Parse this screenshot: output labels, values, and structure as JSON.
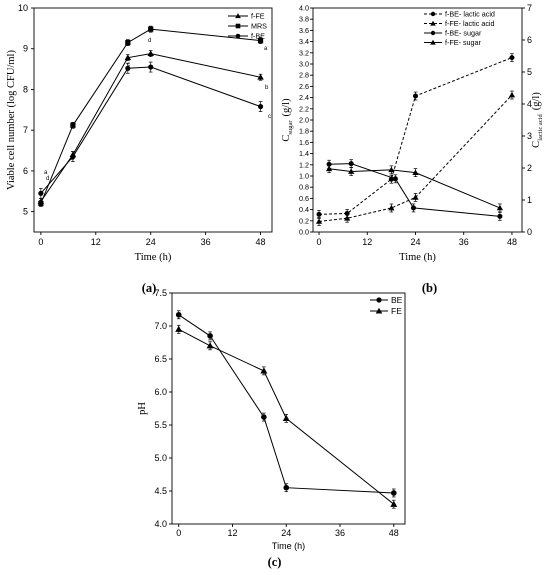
{
  "colors": {
    "ink": "#000000",
    "background": "#ffffff"
  },
  "panel_labels": [
    "(a)",
    "(b)",
    "(c)"
  ],
  "chart_data": [
    {
      "type": "line",
      "panel": "(a)",
      "xlabel": "Time (h)",
      "ylabel": "Viable cell number (log CFU/ml)",
      "xlim": [
        -1.5,
        50.5
      ],
      "ylim": [
        4.5,
        10
      ],
      "xticks": [
        "0",
        "12",
        "24",
        "36",
        "48"
      ],
      "yticks": [
        "5",
        "6",
        "7",
        "8",
        "9",
        "10"
      ],
      "legend_position": "top-right",
      "x": [
        0,
        7,
        19,
        24,
        48
      ],
      "series": [
        {
          "name": "f-FE",
          "marker": "triangle",
          "values": [
            5.25,
            6.4,
            8.78,
            8.88,
            8.3
          ]
        },
        {
          "name": "MRS",
          "marker": "square",
          "values": [
            5.2,
            7.12,
            9.15,
            9.48,
            9.2
          ]
        },
        {
          "name": "f-BE",
          "marker": "circle",
          "values": [
            5.45,
            6.35,
            8.52,
            8.55,
            7.58
          ]
        }
      ],
      "significance_letters": [
        "a",
        "b",
        "c",
        "d",
        "a",
        "b",
        "c",
        "d"
      ]
    },
    {
      "type": "line",
      "panel": "(b)",
      "xlabel": "Time (h)",
      "ylabel_left": "C",
      "ylabel_left_subscript": "sugar",
      "ylabel_left_unit": "(g/l)",
      "ylabel_right": "C",
      "ylabel_right_subscript": "lactic acid",
      "ylabel_right_unit": "(g/l)",
      "xlim": [
        -1.5,
        50.5
      ],
      "ylim_left": [
        0,
        4.0
      ],
      "ylim_right": [
        0,
        7
      ],
      "xticks": [
        "0",
        "12",
        "24",
        "36",
        "48"
      ],
      "yticks_left": [
        "0.0",
        "0.2",
        "0.4",
        "0.6",
        "0.8",
        "1.0",
        "1.2",
        "1.4",
        "1.6",
        "1.8",
        "2.0",
        "2.2",
        "2.4",
        "2.6",
        "2.8",
        "3.0",
        "3.2",
        "3.4",
        "3.6",
        "3.8",
        "4.0"
      ],
      "yticks_right": [
        "0",
        "1",
        "2",
        "3",
        "4",
        "5",
        "6",
        "7"
      ],
      "legend_position": "top-right",
      "series": [
        {
          "name": "f-BE- lactic acid",
          "marker": "circle",
          "line": "dashed",
          "axis": "right",
          "x": [
            0,
            7,
            18,
            24,
            48
          ],
          "values": [
            0.55,
            0.58,
            1.65,
            4.25,
            5.45
          ]
        },
        {
          "name": "f-FE- lactic acid",
          "marker": "triangle",
          "line": "dashed",
          "axis": "right",
          "x": [
            0,
            7,
            18,
            24,
            48
          ],
          "values": [
            0.33,
            0.43,
            0.75,
            1.08,
            4.28
          ]
        },
        {
          "name": "f-BE- sugar",
          "marker": "circle",
          "line": "solid",
          "axis": "left",
          "x": [
            2.5,
            8,
            19,
            23.5,
            45
          ],
          "values": [
            1.21,
            1.22,
            0.95,
            0.43,
            0.28
          ]
        },
        {
          "name": "f-FE- sugar",
          "marker": "triangle",
          "line": "solid",
          "axis": "left",
          "x": [
            2.5,
            8,
            18,
            24,
            45
          ],
          "values": [
            1.13,
            1.08,
            1.11,
            1.06,
            0.43
          ]
        }
      ]
    },
    {
      "type": "line",
      "panel": "(c)",
      "xlabel": "Time (h)",
      "ylabel": "pH",
      "xlim": [
        -1.5,
        50.5
      ],
      "ylim": [
        4.0,
        7.5
      ],
      "xticks": [
        "0",
        "12",
        "24",
        "36",
        "48"
      ],
      "yticks": [
        "4.0",
        "4.5",
        "5.0",
        "5.5",
        "6.0",
        "6.5",
        "7.0",
        "7.5"
      ],
      "legend_position": "top-right",
      "x": [
        0,
        7,
        19,
        24,
        48
      ],
      "series": [
        {
          "name": "BE",
          "marker": "circle",
          "values": [
            7.17,
            6.85,
            5.62,
            4.55,
            4.47
          ]
        },
        {
          "name": "FE",
          "marker": "triangle",
          "values": [
            6.95,
            6.7,
            6.32,
            5.6,
            4.3
          ]
        }
      ]
    }
  ]
}
